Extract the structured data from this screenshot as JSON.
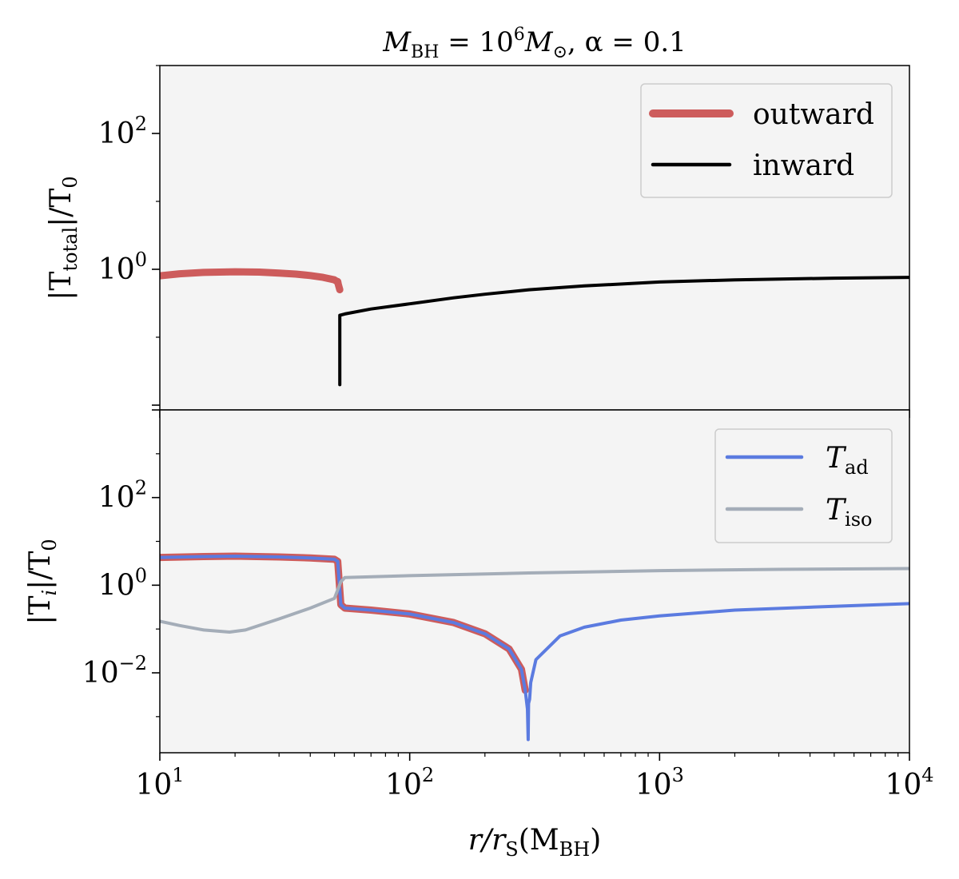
{
  "chart_data": [
    {
      "type": "line",
      "panel": "top",
      "title": "M_BH = 10^6 M_⊙, α = 0.1",
      "title_parts": {
        "mass_symbol": "M",
        "mass_sub": "BH",
        "eq": " = 10",
        "exp": "6",
        "sun": "M",
        "sun_sub": "⊙",
        "alpha": ", α = 0.1"
      },
      "xlabel": "",
      "ylabel": "|T_total|/T_0",
      "ylabel_parts": {
        "a": "|T",
        "sub": "total",
        "b": "|/T",
        "sub2": "0"
      },
      "xscale": "log",
      "yscale": "log",
      "xlim": [
        10,
        10000
      ],
      "ylim": [
        0.0085,
        1000
      ],
      "yticks": [
        {
          "value": 1,
          "base": "10",
          "exp": "0"
        },
        {
          "value": 100,
          "base": "10",
          "exp": "2"
        }
      ],
      "legend": "top-right",
      "series": [
        {
          "name": "outward",
          "color": "#cd5c5c",
          "width": 9,
          "x": [
            10,
            12,
            15,
            20,
            25,
            30,
            35,
            40,
            45,
            50,
            51.5
          ],
          "y": [
            0.8,
            0.86,
            0.9,
            0.92,
            0.91,
            0.88,
            0.85,
            0.81,
            0.76,
            0.7,
            0.65
          ]
        },
        {
          "name": "outward-drop",
          "legend": false,
          "color": "#cd5c5c",
          "width": 9,
          "x": [
            51.5,
            51.8,
            52.5
          ],
          "y": [
            0.66,
            0.6,
            0.5
          ]
        },
        {
          "name": "inward",
          "color": "#000000",
          "width": 4,
          "x": [
            52.5,
            52.5,
            55,
            70,
            100,
            150,
            200,
            300,
            500,
            1000,
            2000,
            5000,
            10000
          ],
          "y": [
            0.02,
            0.21,
            0.22,
            0.26,
            0.31,
            0.38,
            0.43,
            0.5,
            0.57,
            0.65,
            0.7,
            0.74,
            0.76
          ]
        }
      ]
    },
    {
      "type": "line",
      "panel": "bottom",
      "xlabel": "r/r_S(M_BH)",
      "xlabel_parts": {
        "a": "r/r",
        "sub": "S",
        "b": "(M",
        "sub2": "BH",
        "c": ")"
      },
      "ylabel": "|T_i|/T_0",
      "ylabel_parts": {
        "a": "|T",
        "sub": "i",
        "b": "|/T",
        "sub2": "0"
      },
      "xscale": "log",
      "yscale": "log",
      "xlim": [
        10,
        10000
      ],
      "ylim": [
        0.00015,
        10000
      ],
      "xticks": [
        {
          "value": 10,
          "base": "10",
          "exp": "1"
        },
        {
          "value": 100,
          "base": "10",
          "exp": "2"
        },
        {
          "value": 1000,
          "base": "10",
          "exp": "3"
        },
        {
          "value": 10000,
          "base": "10",
          "exp": "4"
        }
      ],
      "yticks": [
        {
          "value": 0.01,
          "base": "10",
          "exp": "−2"
        },
        {
          "value": 1,
          "base": "10",
          "exp": "0"
        },
        {
          "value": 100,
          "base": "10",
          "exp": "2"
        }
      ],
      "legend": "top-right",
      "series": [
        {
          "name": "outward-total",
          "legend": false,
          "color": "#cd5c5c",
          "width": 9,
          "x": [
            10,
            15,
            20,
            30,
            40,
            50,
            51.5,
            53,
            55,
            70,
            100,
            150,
            200,
            250,
            280,
            290
          ],
          "y": [
            4.3,
            4.5,
            4.6,
            4.4,
            4.2,
            3.9,
            3.5,
            0.36,
            0.3,
            0.27,
            0.22,
            0.14,
            0.078,
            0.035,
            0.012,
            0.004
          ]
        },
        {
          "name": "T_ad",
          "label_parts": {
            "sym": "T",
            "sub": "ad"
          },
          "color": "#5b7be0",
          "width": 4,
          "x": [
            10,
            15,
            20,
            30,
            40,
            50,
            51.5,
            53,
            55,
            70,
            100,
            150,
            200,
            250,
            280,
            290,
            296,
            298,
            299,
            302,
            305,
            320,
            400,
            500,
            700,
            1000,
            2000,
            5000,
            10000
          ],
          "y": [
            4.3,
            4.5,
            4.6,
            4.4,
            4.2,
            3.9,
            3.5,
            0.36,
            0.3,
            0.27,
            0.22,
            0.14,
            0.078,
            0.035,
            0.012,
            0.004,
            0.0015,
            0.0003,
            0.002,
            0.0025,
            0.006,
            0.02,
            0.07,
            0.11,
            0.16,
            0.2,
            0.27,
            0.33,
            0.38
          ]
        },
        {
          "name": "T_iso",
          "label_parts": {
            "sym": "T",
            "sub": "iso"
          },
          "color": "#a4adb8",
          "width": 4,
          "x": [
            10,
            12,
            15,
            19,
            22,
            30,
            40,
            50,
            53,
            55,
            100,
            300,
            1000,
            3000,
            10000
          ],
          "y": [
            0.15,
            0.12,
            0.095,
            0.085,
            0.095,
            0.17,
            0.3,
            0.5,
            1.2,
            1.5,
            1.65,
            1.9,
            2.15,
            2.3,
            2.4
          ]
        }
      ]
    }
  ]
}
